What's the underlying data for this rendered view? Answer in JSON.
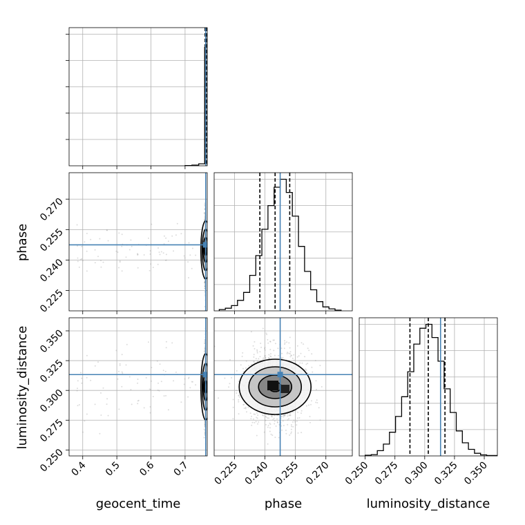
{
  "chart_data": {
    "type": "corner",
    "parameters": [
      "geocent_time",
      "phase",
      "luminosity_distance"
    ],
    "axis_labels": {
      "geocent_time": "geocent_time",
      "phase": "phase",
      "luminosity_distance": "luminosity_distance"
    },
    "ranges": {
      "geocent_time": [
        0.36,
        0.765
      ],
      "phase": [
        0.215,
        0.283
      ],
      "luminosity_distance": [
        0.245,
        0.361
      ]
    },
    "ticks": {
      "geocent_time": [
        0.4,
        0.5,
        0.6,
        0.7
      ],
      "phase": [
        0.225,
        0.24,
        0.255,
        0.27
      ],
      "luminosity_distance": [
        0.25,
        0.275,
        0.3,
        0.325,
        0.35
      ]
    },
    "tick_labels": {
      "geocent_time": [
        "0.4",
        "0.5",
        "0.6",
        "0.7"
      ],
      "phase": [
        "0.225",
        "0.240",
        "0.255",
        "0.270"
      ],
      "luminosity_distance": [
        "0.250",
        "0.275",
        "0.300",
        "0.325",
        "0.350"
      ]
    },
    "truths": {
      "geocent_time": 0.7605,
      "phase": 0.2475,
      "luminosity_distance": 0.3133
    },
    "quantiles": {
      "geocent_time": [
        0.7588,
        0.761,
        0.7625
      ],
      "phase": [
        0.2375,
        0.245,
        0.2522
      ],
      "luminosity_distance": [
        0.2876,
        0.303,
        0.317
      ]
    },
    "histograms": {
      "geocent_time": {
        "bins": [
          0.7,
          0.72,
          0.74,
          0.7575,
          0.761,
          0.765
        ],
        "heights": [
          0.002,
          0.005,
          0.015,
          0.9,
          1.0
        ]
      },
      "phase": {
        "bins": [
          0.2175,
          0.2205,
          0.2235,
          0.2265,
          0.2295,
          0.2325,
          0.2355,
          0.2385,
          0.2415,
          0.2445,
          0.2475,
          0.2505,
          0.2535,
          0.2565,
          0.2595,
          0.2625,
          0.2655,
          0.2685,
          0.2715,
          0.2745,
          0.2775
        ],
        "heights": [
          0.01,
          0.02,
          0.04,
          0.08,
          0.14,
          0.27,
          0.42,
          0.62,
          0.8,
          0.94,
          1.0,
          0.9,
          0.72,
          0.49,
          0.3,
          0.16,
          0.07,
          0.03,
          0.015,
          0.005
        ]
      },
      "luminosity_distance": {
        "bins": [
          0.25,
          0.2551,
          0.2602,
          0.2653,
          0.2704,
          0.2755,
          0.2806,
          0.2857,
          0.2908,
          0.2959,
          0.301,
          0.3061,
          0.3112,
          0.3163,
          0.3214,
          0.3265,
          0.3316,
          0.3367,
          0.3418,
          0.3469,
          0.352,
          0.361
        ],
        "heights": [
          0.005,
          0.01,
          0.04,
          0.09,
          0.18,
          0.3,
          0.45,
          0.64,
          0.85,
          0.97,
          1.0,
          0.9,
          0.72,
          0.51,
          0.33,
          0.19,
          0.1,
          0.05,
          0.02,
          0.008,
          0.003
        ]
      }
    },
    "scatter_gray": "#9a9a9a",
    "truth_color": "#4682b4",
    "grid": true
  }
}
